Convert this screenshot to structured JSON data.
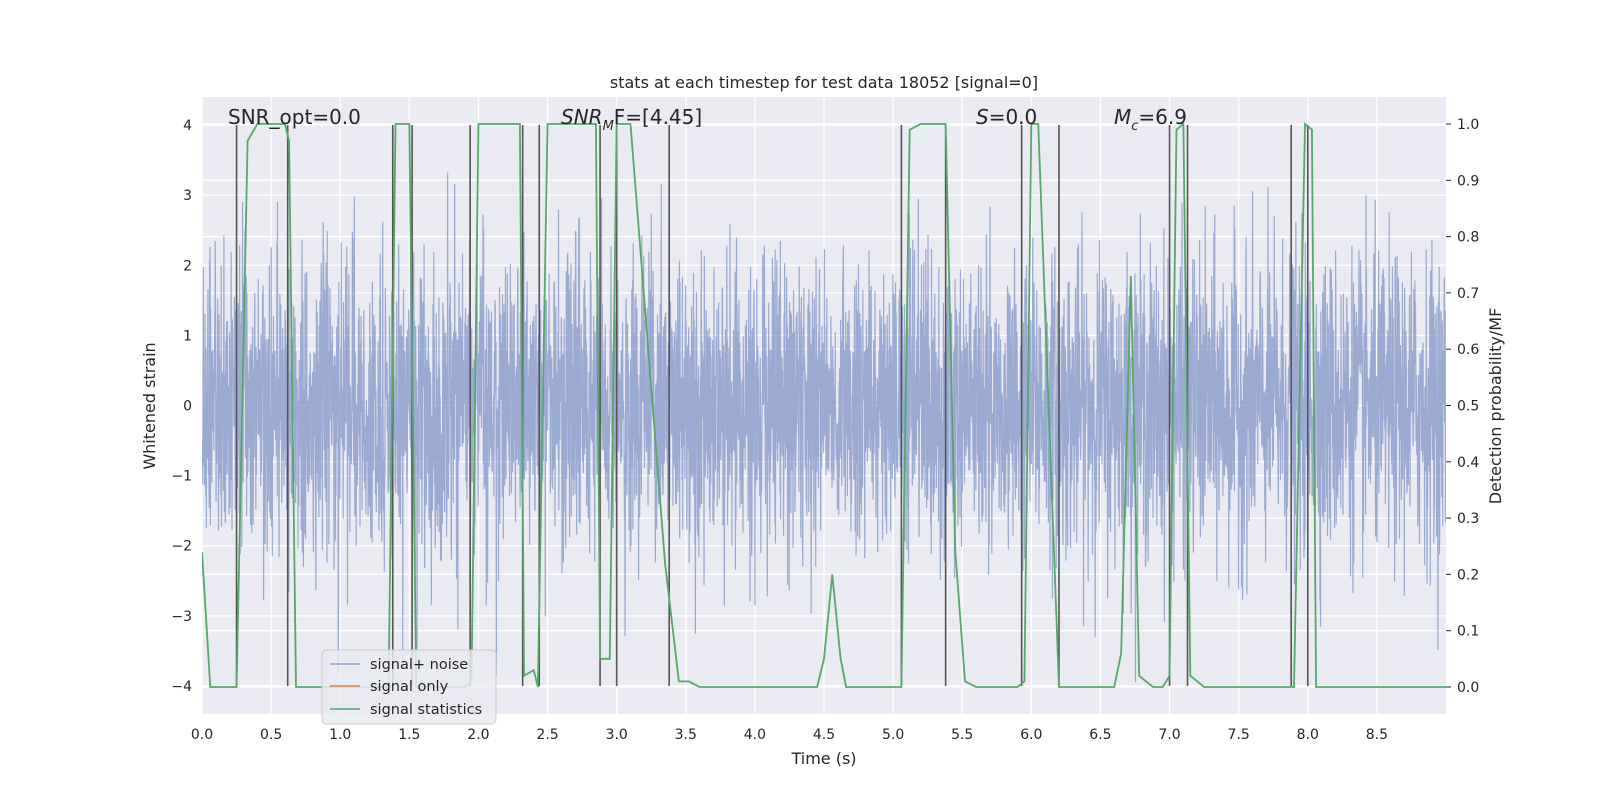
{
  "chart_data": {
    "type": "line",
    "title": "stats at each timestep for test data 18052 [signal=0]",
    "xlabel": "Time (s)",
    "ylabel": "Whitened strain",
    "ylabel_right": "Detection probability/MF",
    "xlim": [
      0.0,
      9.0
    ],
    "ylim": [
      -4.4,
      4.4
    ],
    "ylim_right": [
      -0.048,
      1.048
    ],
    "x_ticks": [
      "0.0",
      "0.5",
      "1.0",
      "1.5",
      "2.0",
      "2.5",
      "3.0",
      "3.5",
      "4.0",
      "4.5",
      "5.0",
      "5.5",
      "6.0",
      "6.5",
      "7.0",
      "7.5",
      "8.0",
      "8.5"
    ],
    "y_ticks": [
      "−4",
      "−3",
      "−2",
      "−1",
      "0",
      "1",
      "2",
      "3",
      "4"
    ],
    "y_ticks_right": [
      "0.0",
      "0.1",
      "0.2",
      "0.3",
      "0.4",
      "0.5",
      "0.6",
      "0.7",
      "0.8",
      "0.9",
      "1.0"
    ],
    "grid": true,
    "legend_position": "lower-left",
    "legend": [
      {
        "label": "signal+ noise",
        "color": "#8c9fcb"
      },
      {
        "label": "signal only",
        "color": "#dd8452"
      },
      {
        "label": "signal statistics",
        "color": "#55a868"
      }
    ],
    "annotations": {
      "snr_opt": "SNR_opt=0.0",
      "snr_mf_main": "SNR",
      "snr_mf_sub": "M",
      "snr_mf_rest": "F=[4.45]",
      "s_main": "S",
      "s_rest": "=0.0",
      "mc_main": "M",
      "mc_sub": "c",
      "mc_rest": "=6.9"
    },
    "vertical_lines": [
      0.25,
      0.62,
      1.38,
      1.52,
      1.94,
      2.32,
      2.44,
      2.88,
      3.0,
      3.38,
      5.06,
      5.38,
      5.93,
      6.2,
      7.0,
      7.13,
      7.88,
      8.0
    ],
    "series": [
      {
        "name": "signal statistics",
        "axis": "right",
        "color": "#55a868",
        "x": [
          0.0,
          0.06,
          0.25,
          0.33,
          0.4,
          0.6,
          0.63,
          0.68,
          1.35,
          1.4,
          1.5,
          1.55,
          1.9,
          1.95,
          2.0,
          2.3,
          2.33,
          2.4,
          2.43,
          2.5,
          2.85,
          2.88,
          2.95,
          3.0,
          3.1,
          3.35,
          3.45,
          3.52,
          3.6,
          3.65,
          4.45,
          4.5,
          4.56,
          4.62,
          4.66,
          5.06,
          5.12,
          5.2,
          5.38,
          5.45,
          5.52,
          5.6,
          5.9,
          5.95,
          6.0,
          6.05,
          6.2,
          6.25,
          6.3,
          6.6,
          6.65,
          6.72,
          6.78,
          6.88,
          6.95,
          7.0,
          7.05,
          7.1,
          7.15,
          7.25,
          7.85,
          7.9,
          7.98,
          8.03,
          8.06,
          9.0
        ],
        "y": [
          0.24,
          0.0,
          0.0,
          0.97,
          1.0,
          1.0,
          0.97,
          0.0,
          0.0,
          1.0,
          1.0,
          0.0,
          0.0,
          0.01,
          1.0,
          1.0,
          0.02,
          0.03,
          0.0,
          1.0,
          1.0,
          0.05,
          0.05,
          1.0,
          1.0,
          0.22,
          0.01,
          0.01,
          0.0,
          0.0,
          0.0,
          0.05,
          0.2,
          0.05,
          0.0,
          0.0,
          0.99,
          1.0,
          1.0,
          0.24,
          0.01,
          0.0,
          0.0,
          0.01,
          1.0,
          1.0,
          0.0,
          0.0,
          0.0,
          0.0,
          0.06,
          0.73,
          0.02,
          0.0,
          0.0,
          0.02,
          0.99,
          1.0,
          0.02,
          0.0,
          0.0,
          0.0,
          1.0,
          0.99,
          0.0,
          0.0
        ]
      },
      {
        "name": "signal+ noise",
        "axis": "left",
        "color": "#8c9fcb",
        "kind": "dense noise trace",
        "x_range": [
          0.0,
          9.0
        ],
        "y_range": [
          -4.0,
          4.0
        ]
      },
      {
        "name": "signal only",
        "axis": "left",
        "color": "#dd8452",
        "x": [],
        "y": []
      }
    ]
  }
}
